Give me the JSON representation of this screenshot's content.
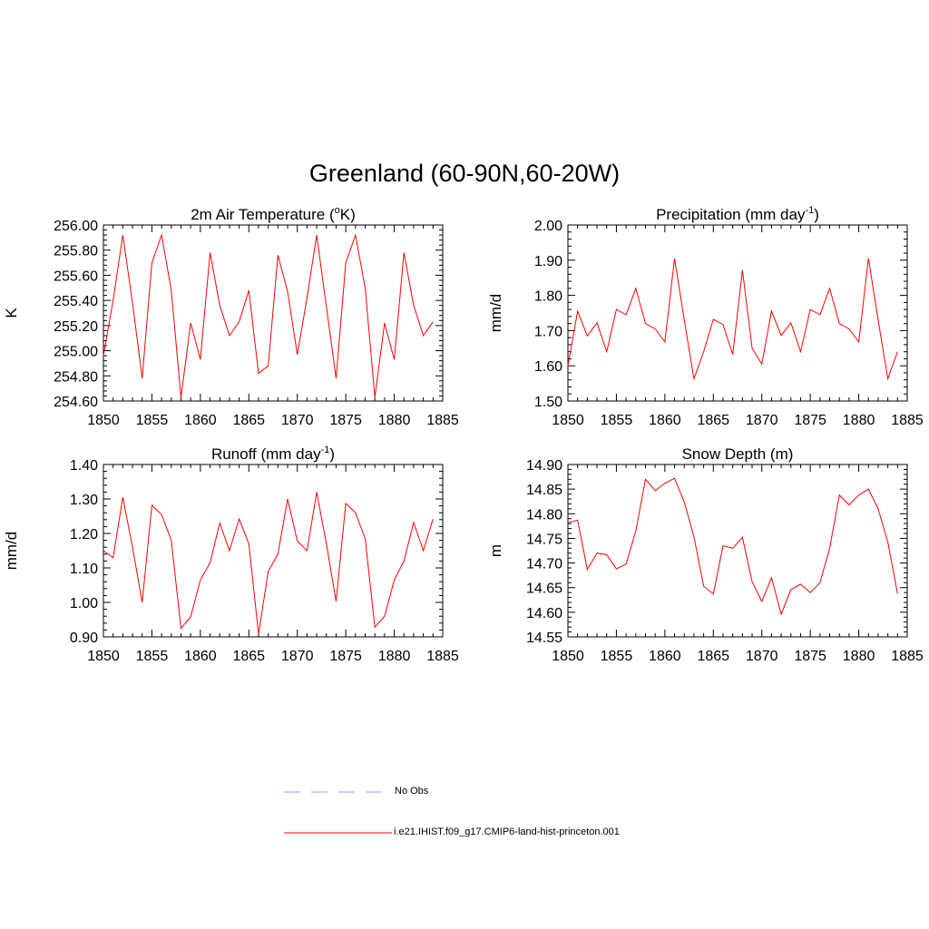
{
  "figure": {
    "title": "Greenland (60-90N,60-20W)"
  },
  "colors": {
    "model": "#ff0000",
    "obs": "#9999ff",
    "axis": "#000000"
  },
  "legend": {
    "obs_label": "No Obs",
    "model_label": "i.e21.IHIST.f09_g17.CMIP6-land-hist-princeton.001"
  },
  "chart_data": [
    {
      "type": "line",
      "title": "2m Air Temperature (°K)",
      "ylabel": "K",
      "xlim": [
        1850,
        1885
      ],
      "ylim": [
        254.6,
        256.0
      ],
      "xticks": [
        "1850",
        "1855",
        "1860",
        "1865",
        "1870",
        "1875",
        "1880",
        "1885"
      ],
      "yticks": [
        "254.60",
        "254.80",
        "255.00",
        "255.20",
        "255.40",
        "255.60",
        "255.80",
        "256.00"
      ],
      "series": [
        {
          "x": [
            1850,
            1851,
            1852,
            1853,
            1854,
            1855,
            1856,
            1857,
            1858,
            1859,
            1860,
            1861,
            1862,
            1863,
            1864,
            1865,
            1866,
            1867,
            1868,
            1869,
            1870,
            1871,
            1872,
            1873,
            1874,
            1875,
            1876,
            1877,
            1878,
            1879,
            1880,
            1881,
            1882,
            1883,
            1884
          ],
          "y": [
            254.96,
            255.4,
            255.92,
            255.38,
            254.78,
            255.7,
            255.92,
            255.48,
            254.63,
            255.22,
            254.93,
            255.78,
            255.36,
            255.12,
            255.23,
            255.48,
            254.82,
            254.88,
            255.76,
            255.47,
            254.97,
            255.42,
            255.92,
            255.35,
            254.78,
            255.7,
            255.92,
            255.5,
            254.63,
            255.22,
            254.93,
            255.78,
            255.36,
            255.12,
            255.23
          ]
        }
      ]
    },
    {
      "type": "line",
      "title": "Precipitation (mm day-1)",
      "ylabel": "mm/d",
      "xlim": [
        1850,
        1885
      ],
      "ylim": [
        1.5,
        2.0
      ],
      "xticks": [
        "1850",
        "1855",
        "1860",
        "1865",
        "1870",
        "1875",
        "1880",
        "1885"
      ],
      "yticks": [
        "1.50",
        "1.60",
        "1.70",
        "1.80",
        "1.90",
        "2.00"
      ],
      "series": [
        {
          "x": [
            1850,
            1851,
            1852,
            1853,
            1854,
            1855,
            1856,
            1857,
            1858,
            1859,
            1860,
            1861,
            1862,
            1863,
            1864,
            1865,
            1866,
            1867,
            1868,
            1869,
            1870,
            1871,
            1872,
            1873,
            1874,
            1875,
            1876,
            1877,
            1878,
            1879,
            1880,
            1881,
            1882,
            1883,
            1884
          ],
          "y": [
            1.6,
            1.755,
            1.685,
            1.722,
            1.64,
            1.76,
            1.745,
            1.82,
            1.72,
            1.705,
            1.668,
            1.905,
            1.73,
            1.563,
            1.64,
            1.732,
            1.717,
            1.632,
            1.872,
            1.65,
            1.605,
            1.755,
            1.686,
            1.722,
            1.64,
            1.76,
            1.745,
            1.82,
            1.72,
            1.705,
            1.668,
            1.905,
            1.73,
            1.563,
            1.64
          ]
        }
      ]
    },
    {
      "type": "line",
      "title": "Runoff (mm day-1)",
      "ylabel": "mm/d",
      "xlim": [
        1850,
        1885
      ],
      "ylim": [
        0.9,
        1.4
      ],
      "xticks": [
        "1850",
        "1855",
        "1860",
        "1865",
        "1870",
        "1875",
        "1880",
        "1885"
      ],
      "yticks": [
        "0.90",
        "1.00",
        "1.10",
        "1.20",
        "1.30",
        "1.40"
      ],
      "series": [
        {
          "x": [
            1850,
            1851,
            1852,
            1853,
            1854,
            1855,
            1856,
            1857,
            1858,
            1859,
            1860,
            1861,
            1862,
            1863,
            1864,
            1865,
            1866,
            1867,
            1868,
            1869,
            1870,
            1871,
            1872,
            1873,
            1874,
            1875,
            1876,
            1877,
            1878,
            1879,
            1880,
            1881,
            1882,
            1883,
            1884
          ],
          "y": [
            1.15,
            1.13,
            1.305,
            1.16,
            1.0,
            1.282,
            1.255,
            1.18,
            0.925,
            0.958,
            1.065,
            1.115,
            1.23,
            1.15,
            1.242,
            1.17,
            0.908,
            1.09,
            1.14,
            1.3,
            1.178,
            1.15,
            1.32,
            1.17,
            1.003,
            1.287,
            1.26,
            1.185,
            0.928,
            0.96,
            1.065,
            1.12,
            1.232,
            1.15,
            1.242
          ]
        }
      ]
    },
    {
      "type": "line",
      "title": "Snow Depth (m)",
      "ylabel": "m",
      "xlim": [
        1850,
        1885
      ],
      "ylim": [
        14.55,
        14.9
      ],
      "xticks": [
        "1850",
        "1855",
        "1860",
        "1865",
        "1870",
        "1875",
        "1880",
        "1885"
      ],
      "yticks": [
        "14.55",
        "14.60",
        "14.65",
        "14.70",
        "14.75",
        "14.80",
        "14.85",
        "14.90"
      ],
      "series": [
        {
          "x": [
            1850,
            1851,
            1852,
            1853,
            1854,
            1855,
            1856,
            1857,
            1858,
            1859,
            1860,
            1861,
            1862,
            1863,
            1864,
            1865,
            1866,
            1867,
            1868,
            1869,
            1870,
            1871,
            1872,
            1873,
            1874,
            1875,
            1876,
            1877,
            1878,
            1879,
            1880,
            1881,
            1882,
            1883,
            1884
          ],
          "y": [
            14.782,
            14.787,
            14.687,
            14.72,
            14.717,
            14.688,
            14.698,
            14.765,
            14.87,
            14.847,
            14.862,
            14.872,
            14.824,
            14.753,
            14.653,
            14.637,
            14.735,
            14.73,
            14.752,
            14.662,
            14.622,
            14.67,
            14.596,
            14.646,
            14.657,
            14.64,
            14.66,
            14.73,
            14.838,
            14.818,
            14.838,
            14.85,
            14.81,
            14.742,
            14.638
          ]
        }
      ]
    }
  ]
}
